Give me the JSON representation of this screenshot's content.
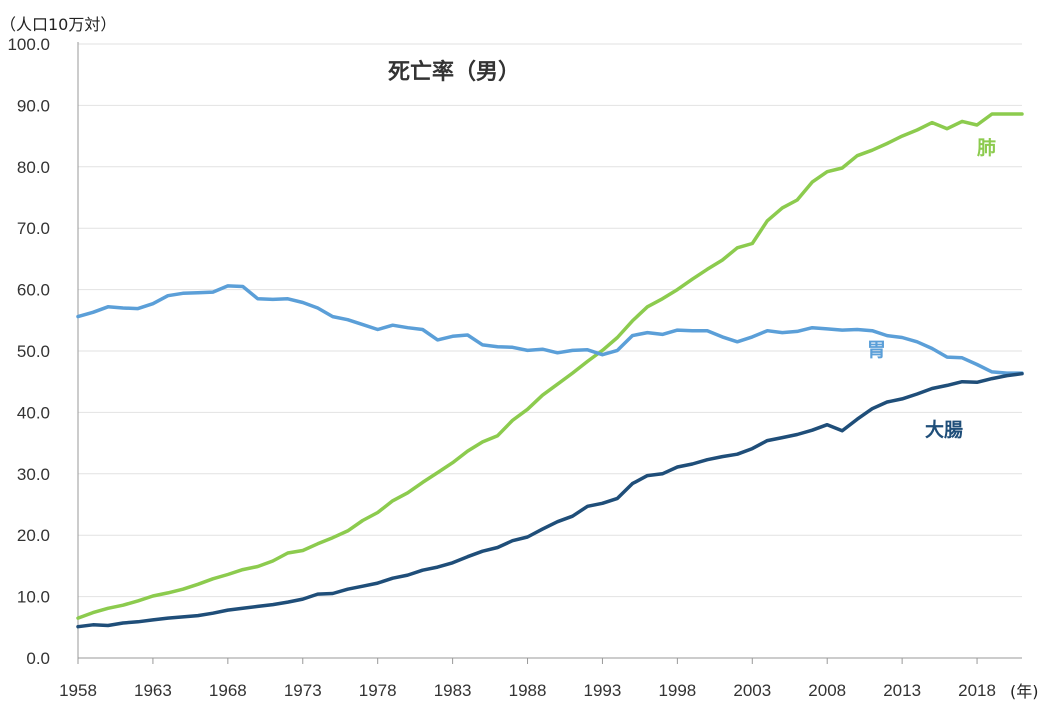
{
  "chart_data": {
    "type": "line",
    "title": "死亡率（男）",
    "ylabel": "（人口10万対）",
    "xlabel": "(年)",
    "ylim": [
      0,
      100
    ],
    "xlim": [
      1958,
      2021
    ],
    "yticks": [
      "0.0",
      "10.0",
      "20.0",
      "30.0",
      "40.0",
      "50.0",
      "60.0",
      "70.0",
      "80.0",
      "90.0",
      "100.0"
    ],
    "xticks": [
      "1958",
      "1963",
      "1968",
      "1973",
      "1978",
      "1983",
      "1988",
      "1993",
      "1998",
      "2003",
      "2008",
      "2013",
      "2018"
    ],
    "grid": true,
    "x": [
      1958,
      1959,
      1960,
      1961,
      1962,
      1963,
      1964,
      1965,
      1966,
      1967,
      1968,
      1969,
      1970,
      1971,
      1972,
      1973,
      1974,
      1975,
      1976,
      1977,
      1978,
      1979,
      1980,
      1981,
      1982,
      1983,
      1984,
      1985,
      1986,
      1987,
      1988,
      1989,
      1990,
      1991,
      1992,
      1993,
      1994,
      1995,
      1996,
      1997,
      1998,
      1999,
      2000,
      2001,
      2002,
      2003,
      2004,
      2005,
      2006,
      2007,
      2008,
      2009,
      2010,
      2011,
      2012,
      2013,
      2014,
      2015,
      2016,
      2017,
      2018,
      2019,
      2020,
      2021
    ],
    "series": [
      {
        "name": "肺",
        "color": "#8ccb4e",
        "values": [
          6.5,
          7.4,
          8.1,
          8.6,
          9.3,
          10.1,
          10.6,
          11.2,
          12.0,
          12.9,
          13.6,
          14.4,
          14.9,
          15.8,
          17.1,
          17.5,
          18.6,
          19.6,
          20.7,
          22.4,
          23.7,
          25.6,
          26.9,
          28.6,
          30.2,
          31.8,
          33.7,
          35.2,
          36.2,
          38.7,
          40.5,
          42.8,
          44.6,
          46.4,
          48.3,
          50.1,
          52.2,
          54.9,
          57.2,
          58.5,
          60.0,
          61.7,
          63.3,
          64.8,
          66.8,
          67.5,
          71.2,
          73.3,
          74.6,
          77.5,
          79.2,
          79.8,
          81.8,
          82.7,
          83.8,
          85.0,
          86.0,
          87.2,
          86.2,
          87.4,
          86.8,
          88.6,
          88.6,
          88.6
        ]
      },
      {
        "name": "胃",
        "color": "#5b9fd8",
        "values": [
          55.6,
          56.3,
          57.2,
          57.0,
          56.9,
          57.7,
          59.0,
          59.4,
          59.5,
          59.6,
          60.6,
          60.5,
          58.5,
          58.4,
          58.5,
          57.9,
          57.0,
          55.6,
          55.1,
          54.3,
          53.5,
          54.2,
          53.8,
          53.5,
          51.8,
          52.4,
          52.6,
          51.0,
          50.7,
          50.6,
          50.1,
          50.3,
          49.7,
          50.1,
          50.2,
          49.4,
          50.1,
          52.5,
          53.0,
          52.7,
          53.4,
          53.3,
          53.3,
          52.3,
          51.5,
          52.3,
          53.3,
          53.0,
          53.2,
          53.8,
          53.6,
          53.4,
          53.5,
          53.3,
          52.5,
          52.2,
          51.5,
          50.4,
          49.0,
          48.9,
          47.8,
          46.6,
          46.4,
          46.4
        ]
      },
      {
        "name": "大腸",
        "color": "#1f4e79",
        "values": [
          5.1,
          5.4,
          5.3,
          5.7,
          5.9,
          6.2,
          6.5,
          6.7,
          6.9,
          7.3,
          7.8,
          8.1,
          8.4,
          8.7,
          9.1,
          9.6,
          10.4,
          10.5,
          11.2,
          11.7,
          12.2,
          13.0,
          13.5,
          14.3,
          14.8,
          15.5,
          16.5,
          17.4,
          18.0,
          19.1,
          19.7,
          21.0,
          22.2,
          23.1,
          24.7,
          25.2,
          26.0,
          28.4,
          29.7,
          30.0,
          31.1,
          31.6,
          32.3,
          32.8,
          33.2,
          34.1,
          35.4,
          35.9,
          36.4,
          37.1,
          38.0,
          37.0,
          38.9,
          40.6,
          41.7,
          42.2,
          43.0,
          43.9,
          44.4,
          45.0,
          44.9,
          45.5,
          46.0,
          46.3
        ]
      }
    ]
  }
}
